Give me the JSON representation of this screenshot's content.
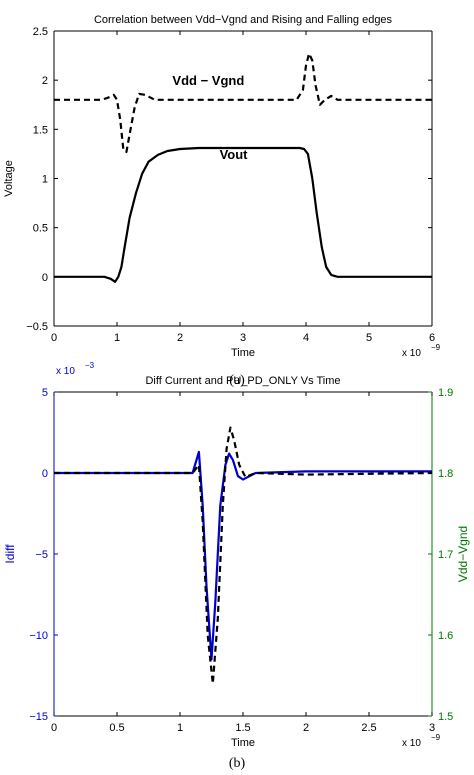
{
  "figure_labels": [
    "(a)",
    "(b)"
  ],
  "chart_data": [
    {
      "type": "line",
      "title": "Correlation between Vdd−Vgnd and Rising and Falling edges",
      "xlabel": "Time",
      "ylabel": "Voltage",
      "x_exponent": "x 10",
      "x_exponent_power": "−9",
      "xlim": [
        0,
        6
      ],
      "ylim": [
        -0.5,
        2.5
      ],
      "xticks": [
        0,
        1,
        2,
        3,
        4,
        5,
        6
      ],
      "xtick_labels": [
        "0",
        "1",
        "2",
        "3",
        "4",
        "5",
        "6"
      ],
      "yticks": [
        -0.5,
        0,
        0.5,
        1,
        1.5,
        2,
        2.5
      ],
      "ytick_labels": [
        "−0.5",
        "0",
        "0.5",
        "1",
        "1.5",
        "2",
        "2.5"
      ],
      "grid": false,
      "annotations": [
        {
          "text": "Vdd  − Vgnd",
          "x": 2.45,
          "y": 1.95
        },
        {
          "text": "Vout",
          "x": 2.85,
          "y": 1.2
        }
      ],
      "series": [
        {
          "style": "dashed",
          "color": "#000000",
          "x": [
            0,
            0.75,
            0.85,
            0.95,
            1.0,
            1.05,
            1.1,
            1.15,
            1.2,
            1.28,
            1.35,
            1.45,
            1.6,
            2,
            3,
            3.85,
            3.95,
            4.0,
            4.05,
            4.1,
            4.15,
            4.22,
            4.3,
            4.4,
            4.5,
            4.6,
            5,
            6
          ],
          "y": [
            1.8,
            1.8,
            1.82,
            1.85,
            1.8,
            1.6,
            1.3,
            1.27,
            1.45,
            1.72,
            1.86,
            1.85,
            1.8,
            1.8,
            1.8,
            1.8,
            1.9,
            2.15,
            2.27,
            2.2,
            1.95,
            1.75,
            1.8,
            1.84,
            1.8,
            1.8,
            1.8,
            1.8
          ]
        },
        {
          "style": "solid",
          "color": "#000000",
          "x": [
            0,
            0.8,
            0.9,
            0.97,
            1.02,
            1.07,
            1.12,
            1.2,
            1.3,
            1.4,
            1.5,
            1.65,
            1.8,
            2.0,
            2.3,
            3.0,
            3.8,
            3.9,
            3.97,
            4.03,
            4.1,
            4.17,
            4.25,
            4.32,
            4.4,
            4.5,
            5,
            6
          ],
          "y": [
            0,
            0,
            -0.02,
            -0.05,
            0.0,
            0.1,
            0.3,
            0.6,
            0.85,
            1.05,
            1.17,
            1.24,
            1.28,
            1.3,
            1.31,
            1.31,
            1.31,
            1.31,
            1.3,
            1.25,
            1.0,
            0.65,
            0.3,
            0.1,
            0.02,
            0,
            0,
            0
          ]
        }
      ]
    },
    {
      "type": "line",
      "title": "Diff Current and PU_PD_ONLY Vs Time",
      "xlabel": "Time",
      "ylabel": "Idiff",
      "ylabel_right": "Vdd−Vgnd",
      "x_exponent": "x 10",
      "x_exponent_power": "−9",
      "y_exponent": "x 10",
      "y_exponent_power": "−3",
      "xlim": [
        0,
        3
      ],
      "ylim": [
        -15,
        5
      ],
      "ylim_right": [
        1.5,
        1.9
      ],
      "xticks": [
        0,
        0.5,
        1,
        1.5,
        2,
        2.5,
        3
      ],
      "xtick_labels": [
        "0",
        "0.5",
        "1",
        "1.5",
        "2",
        "2.5",
        "3"
      ],
      "yticks": [
        -15,
        -10,
        -5,
        0,
        5
      ],
      "ytick_labels": [
        "−15",
        "−10",
        "−5",
        "0",
        "5"
      ],
      "yticks_right": [
        1.5,
        1.6,
        1.7,
        1.8,
        1.9
      ],
      "ytick_labels_right": [
        "1.5",
        "1.6",
        "1.7",
        "1.8",
        "1.9"
      ],
      "grid": false,
      "colors": {
        "left_axis": "#0000cc",
        "right_axis": "#007700"
      },
      "series": [
        {
          "axis": "left",
          "style": "solid",
          "color": "#0000cc",
          "x": [
            0,
            1.1,
            1.15,
            1.18,
            1.21,
            1.25,
            1.28,
            1.32,
            1.36,
            1.39,
            1.42,
            1.46,
            1.5,
            1.6,
            2.0,
            3.0
          ],
          "y": [
            0,
            0,
            1.3,
            -2,
            -7,
            -11.5,
            -8,
            -2,
            0.5,
            1.2,
            0.8,
            -0.2,
            -0.4,
            0,
            0.1,
            0.1
          ]
        },
        {
          "axis": "right",
          "style": "dashed",
          "color": "#000000",
          "x": [
            0,
            1.1,
            1.15,
            1.18,
            1.22,
            1.26,
            1.3,
            1.34,
            1.37,
            1.4,
            1.43,
            1.47,
            1.52,
            1.6,
            2.0,
            3.0
          ],
          "y": [
            1.8,
            1.8,
            1.81,
            1.74,
            1.6,
            1.54,
            1.62,
            1.76,
            1.83,
            1.856,
            1.84,
            1.81,
            1.795,
            1.8,
            1.798,
            1.8
          ]
        }
      ]
    }
  ]
}
